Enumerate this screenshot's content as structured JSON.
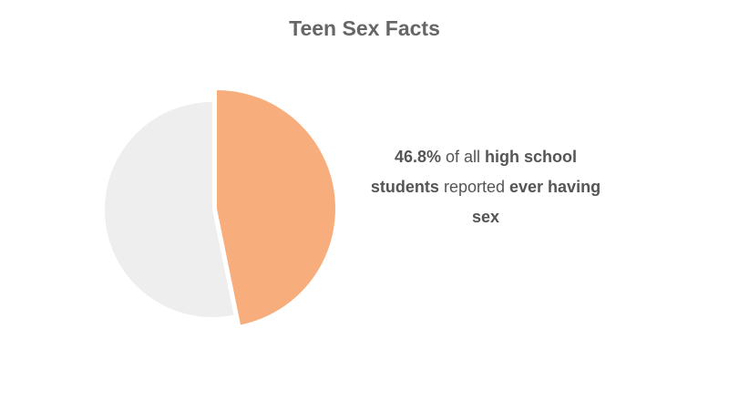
{
  "chart_data": {
    "type": "pie",
    "title": "Teen Sex Facts",
    "categories": [
      null,
      null
    ],
    "values": [
      46.8,
      53.2
    ],
    "value_labels": [
      "46.8%",
      null
    ],
    "colors": [
      "#f8ae7c",
      "#eeeeee"
    ],
    "annotation": [
      {
        "text": "of all",
        "bold": false
      },
      {
        "text": "high school students",
        "bold": true
      },
      {
        "text": "reported",
        "bold": false
      },
      {
        "text": "ever having sex",
        "bold": true
      }
    ]
  }
}
